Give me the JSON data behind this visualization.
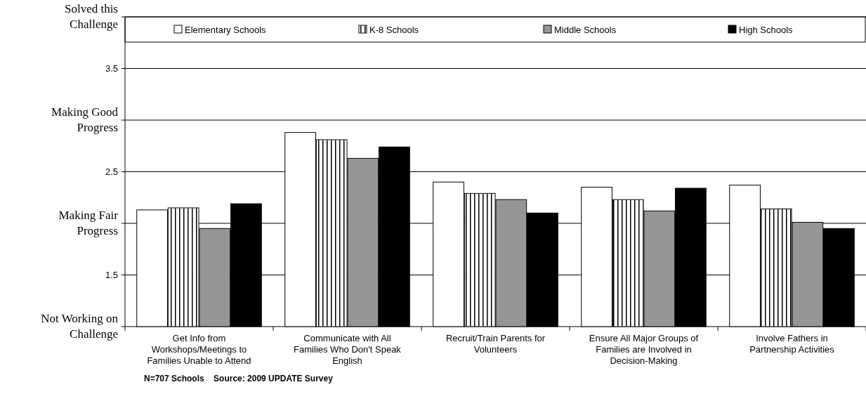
{
  "chart_data": {
    "type": "bar",
    "categories": [
      "Get Info from Workshops/Meetings to Families Unable to Attend",
      "Communicate with All Families Who Don't Speak English",
      "Recruit/Train Parents for Volunteers",
      "Ensure All Major Groups of Families are Involved in Decision-Making",
      "Involve Fathers in Partnership Activities"
    ],
    "series": [
      {
        "name": "Elementary Schools",
        "color": "#ffffff",
        "values": [
          2.13,
          2.88,
          2.4,
          2.35,
          2.37
        ]
      },
      {
        "name": "K-8 Schools",
        "color": "#ffffff",
        "values": [
          2.15,
          2.81,
          2.29,
          2.23,
          2.14
        ]
      },
      {
        "name": "Middle Schools",
        "color": "#969696",
        "values": [
          1.95,
          2.63,
          2.23,
          2.12,
          2.01
        ]
      },
      {
        "name": "High Schools",
        "color": "#000000",
        "values": [
          2.19,
          2.74,
          2.1,
          2.34,
          1.95
        ]
      }
    ],
    "ylim": [
      1,
      4
    ],
    "yticks": [
      {
        "value": 1,
        "label": "Not Working on Challenge"
      },
      1.5,
      {
        "value": 2,
        "label": "Making Fair Progress"
      },
      2.5,
      {
        "value": 3,
        "label": "Making Good Progress"
      },
      3.5,
      {
        "value": 4,
        "label": "Solved this Challenge"
      }
    ],
    "grid": "y",
    "legend": "top",
    "annotations": [
      "N=707 Schools    Source: 2009 UPDATE Survey"
    ]
  }
}
